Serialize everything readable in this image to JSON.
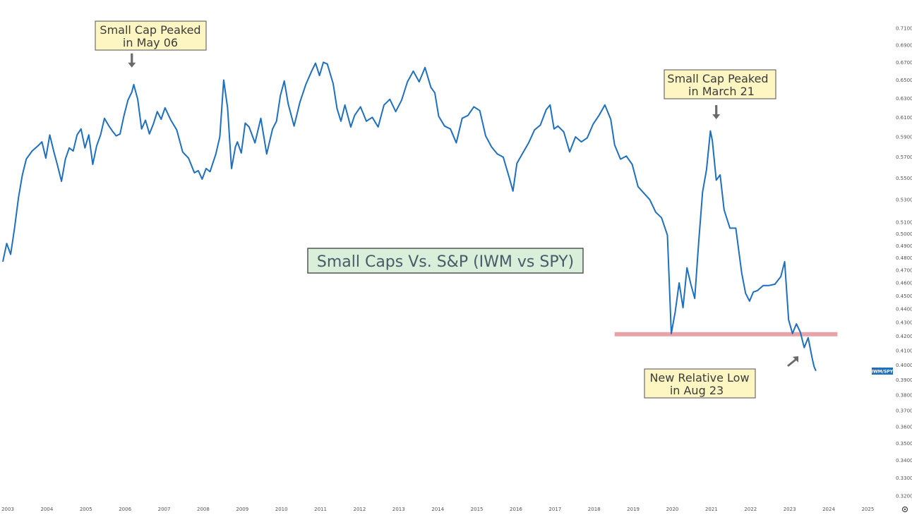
{
  "chart_data": {
    "type": "line",
    "title": "Small Caps Vs. S&P (IWM vs SPY)",
    "series": [
      {
        "name": "IWM/SPY",
        "color": "#1f6fbf",
        "x": [
          2003.0,
          2003.1,
          2003.2,
          2003.3,
          2003.4,
          2003.5,
          2003.6,
          2003.75,
          2003.9,
          2004.0,
          2004.1,
          2004.2,
          2004.3,
          2004.4,
          2004.5,
          2004.6,
          2004.7,
          2004.8,
          2004.9,
          2005.0,
          2005.1,
          2005.2,
          2005.3,
          2005.4,
          2005.5,
          2005.6,
          2005.7,
          2005.8,
          2005.9,
          2006.0,
          2006.1,
          2006.2,
          2006.3,
          2006.35,
          2006.45,
          2006.55,
          2006.65,
          2006.75,
          2006.85,
          2006.95,
          2007.05,
          2007.15,
          2007.3,
          2007.45,
          2007.6,
          2007.75,
          2007.9,
          2008.0,
          2008.1,
          2008.2,
          2008.3,
          2008.45,
          2008.55,
          2008.65,
          2008.75,
          2008.85,
          2008.95,
          2009.0,
          2009.1,
          2009.2,
          2009.3,
          2009.45,
          2009.6,
          2009.75,
          2009.9,
          2010.0,
          2010.1,
          2010.2,
          2010.3,
          2010.45,
          2010.6,
          2010.75,
          2010.9,
          2011.0,
          2011.1,
          2011.2,
          2011.3,
          2011.45,
          2011.55,
          2011.65,
          2011.75,
          2011.9,
          2012.0,
          2012.15,
          2012.3,
          2012.45,
          2012.6,
          2012.75,
          2012.9,
          2013.05,
          2013.2,
          2013.35,
          2013.5,
          2013.65,
          2013.8,
          2013.95,
          2014.05,
          2014.15,
          2014.3,
          2014.45,
          2014.6,
          2014.75,
          2014.9,
          2015.05,
          2015.2,
          2015.35,
          2015.5,
          2015.65,
          2015.8,
          2015.95,
          2016.05,
          2016.15,
          2016.3,
          2016.45,
          2016.6,
          2016.75,
          2016.9,
          2017.0,
          2017.1,
          2017.2,
          2017.35,
          2017.5,
          2017.65,
          2017.8,
          2017.95,
          2018.1,
          2018.25,
          2018.4,
          2018.55,
          2018.65,
          2018.8,
          2018.95,
          2019.1,
          2019.25,
          2019.4,
          2019.55,
          2019.7,
          2019.85,
          2020.0,
          2020.1,
          2020.2,
          2020.3,
          2020.4,
          2020.5,
          2020.6,
          2020.7,
          2020.8,
          2020.9,
          2021.0,
          2021.1,
          2021.15,
          2021.25,
          2021.35,
          2021.45,
          2021.6,
          2021.75,
          2021.9,
          2022.0,
          2022.1,
          2022.2,
          2022.3,
          2022.45,
          2022.6,
          2022.75,
          2022.9,
          2023.0,
          2023.1,
          2023.2,
          2023.3,
          2023.4,
          2023.5,
          2023.6,
          2023.7,
          2023.75,
          2023.8
        ],
        "y": [
          0.477,
          0.492,
          0.483,
          0.505,
          0.532,
          0.553,
          0.568,
          0.576,
          0.581,
          0.585,
          0.569,
          0.592,
          0.576,
          0.562,
          0.547,
          0.568,
          0.579,
          0.576,
          0.592,
          0.598,
          0.579,
          0.592,
          0.563,
          0.581,
          0.592,
          0.609,
          0.602,
          0.596,
          0.591,
          0.593,
          0.612,
          0.628,
          0.637,
          0.645,
          0.629,
          0.598,
          0.607,
          0.593,
          0.603,
          0.616,
          0.608,
          0.62,
          0.607,
          0.597,
          0.575,
          0.569,
          0.555,
          0.557,
          0.549,
          0.559,
          0.556,
          0.573,
          0.59,
          0.65,
          0.62,
          0.559,
          0.58,
          0.585,
          0.574,
          0.604,
          0.6,
          0.584,
          0.609,
          0.573,
          0.598,
          0.606,
          0.633,
          0.649,
          0.624,
          0.601,
          0.626,
          0.645,
          0.66,
          0.669,
          0.655,
          0.67,
          0.668,
          0.646,
          0.619,
          0.606,
          0.623,
          0.6,
          0.612,
          0.621,
          0.606,
          0.61,
          0.6,
          0.623,
          0.629,
          0.616,
          0.628,
          0.648,
          0.66,
          0.648,
          0.664,
          0.642,
          0.636,
          0.611,
          0.601,
          0.598,
          0.584,
          0.609,
          0.612,
          0.621,
          0.617,
          0.591,
          0.58,
          0.573,
          0.57,
          0.551,
          0.538,
          0.564,
          0.574,
          0.584,
          0.597,
          0.602,
          0.618,
          0.623,
          0.598,
          0.601,
          0.595,
          0.575,
          0.59,
          0.585,
          0.589,
          0.603,
          0.612,
          0.623,
          0.608,
          0.582,
          0.568,
          0.571,
          0.563,
          0.542,
          0.536,
          0.53,
          0.519,
          0.514,
          0.499,
          0.422,
          0.438,
          0.46,
          0.441,
          0.472,
          0.459,
          0.448,
          0.493,
          0.537,
          0.558,
          0.596,
          0.586,
          0.548,
          0.553,
          0.521,
          0.505,
          0.505,
          0.468,
          0.452,
          0.446,
          0.453,
          0.454,
          0.458,
          0.458,
          0.459,
          0.465,
          0.477,
          0.432,
          0.422,
          0.429,
          0.423,
          0.412,
          0.419,
          0.405,
          0.399,
          0.396
        ]
      }
    ],
    "x_ticks": [
      "2003",
      "2004",
      "2005",
      "2006",
      "2007",
      "2008",
      "2009",
      "2010",
      "2011",
      "2012",
      "2013",
      "2014",
      "2015",
      "2016",
      "2017",
      "2018",
      "2019",
      "2020",
      "2021",
      "2022",
      "2023",
      "2024",
      "2025"
    ],
    "y_ticks": [
      "0.7100",
      "0.6900",
      "0.6700",
      "0.6500",
      "0.6300",
      "0.6100",
      "0.5900",
      "0.5700",
      "0.5500",
      "0.5300",
      "0.5100",
      "0.5000",
      "0.4900",
      "0.4800",
      "0.4700",
      "0.4600",
      "0.4500",
      "0.4400",
      "0.4300",
      "0.4200",
      "0.4100",
      "0.4000",
      "0.3900",
      "0.3800",
      "0.3700",
      "0.3600",
      "0.3500",
      "0.3400",
      "0.3300",
      "0.3200"
    ],
    "y_tick_values": [
      0.71,
      0.69,
      0.67,
      0.65,
      0.63,
      0.61,
      0.59,
      0.57,
      0.55,
      0.53,
      0.51,
      0.5,
      0.49,
      0.48,
      0.47,
      0.46,
      0.45,
      0.44,
      0.43,
      0.42,
      0.41,
      0.4,
      0.39,
      0.38,
      0.37,
      0.36,
      0.35,
      0.34,
      0.33,
      0.32
    ],
    "y_scale": "log",
    "xlim": [
      2003.0,
      2025.3
    ],
    "ylim": [
      0.315,
      0.745
    ],
    "grid": false,
    "support_line": {
      "value": 0.4215,
      "x_from": 2018.65,
      "x_to": 2024.35,
      "color": "#e8a3a8"
    },
    "last_value_tag": {
      "label": "IWM/SPY",
      "color": "#1f6fbf"
    },
    "annotations": [
      {
        "id": "peak-2006",
        "lines": [
          "Small Cap Peaked",
          "in May 06"
        ],
        "arrow": "down",
        "arrow_x": 2006.3,
        "arrow_y": 0.664
      },
      {
        "id": "peak-2021",
        "lines": [
          "Small Cap Peaked",
          "in March 21"
        ],
        "arrow": "down",
        "arrow_x": 2021.25,
        "arrow_y": 0.608
      },
      {
        "id": "low-2023",
        "lines": [
          "New Relative Low",
          "in Aug 23"
        ],
        "arrow": "up-right",
        "arrow_x": 2023.35,
        "arrow_y": 0.406
      }
    ]
  }
}
